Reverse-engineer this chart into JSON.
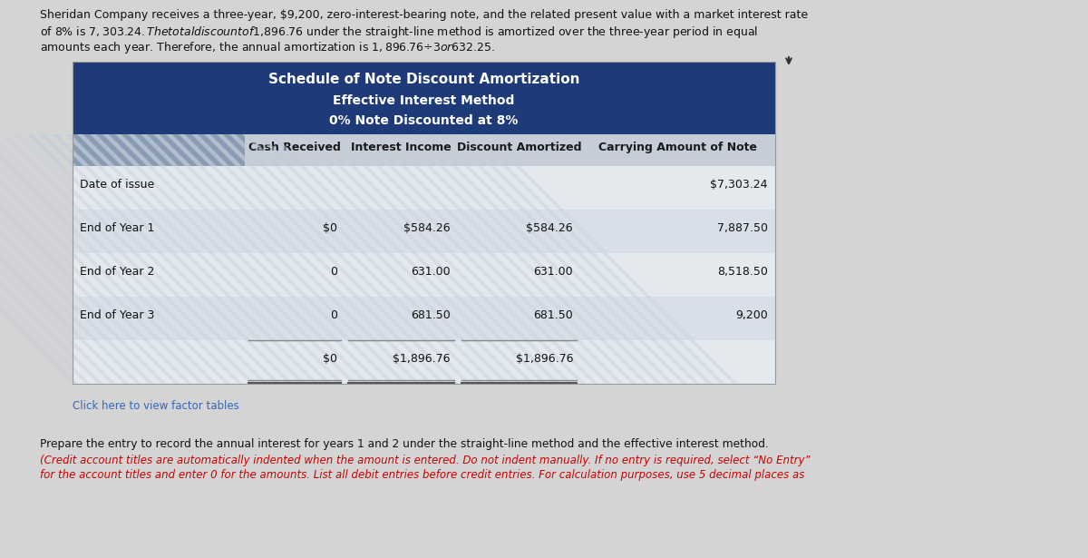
{
  "page_bg": "#d4d4d4",
  "header_text_line1": "Sheridan Company receives a three-year, $9,200, zero-interest-bearing note, and the related present value with a market interest rate",
  "header_text_line2": "of 8% is $7,303.24. The total discount of $1,896.76 under the straight-line method is amortized over the three-year period in equal",
  "header_text_line3": "amounts each year. Therefore, the annual amortization is $1,896.76 ÷ 3 or $632.25.",
  "table_title_bg": "#1e3a78",
  "table_title_text": "Schedule of Note Discount Amortization",
  "table_subtitle1": "Effective Interest Method",
  "table_subtitle2": "0% Note Discounted at 8%",
  "col_header_bg": "#c5cdd8",
  "stripe_dark": "#8090a8",
  "stripe_light": "#b0bece",
  "col_headers": [
    "Cash Received",
    "Interest Income",
    "Discount Amortized",
    "Carrying Amount of Note"
  ],
  "row_labels": [
    "Date of issue",
    "End of Year 1",
    "End of Year 2",
    "End of Year 3",
    ""
  ],
  "cash_received": [
    "",
    "$0",
    "0",
    "0",
    "$0"
  ],
  "interest_income": [
    "",
    "$584.26",
    "631.00",
    "681.50",
    "$1,896.76"
  ],
  "discount_amortized": [
    "",
    "$584.26",
    "631.00",
    "681.50",
    "$1,896.76"
  ],
  "carrying_amount": [
    "$7,303.24",
    "7,887.50",
    "8,518.50",
    "9,200",
    ""
  ],
  "row_bg_even": "#e4e9ee",
  "row_bg_odd": "#d8dfe8",
  "row_stripe_even": "#aab8c8",
  "row_stripe_odd": "#9eadc0",
  "click_link": "Click here to view factor tables",
  "bottom_text1": "Prepare the entry to record the annual interest for years 1 and 2 under the straight-line method and the effective interest method.",
  "bottom_text2": "(Credit account titles are automatically indented when the amount is entered. Do not indent manually. If no entry is required, select “No Entry”",
  "bottom_text3": "for the account titles and enter 0 for the amounts. List all debit entries before credit entries. For calculation purposes, use 5 decimal places as"
}
